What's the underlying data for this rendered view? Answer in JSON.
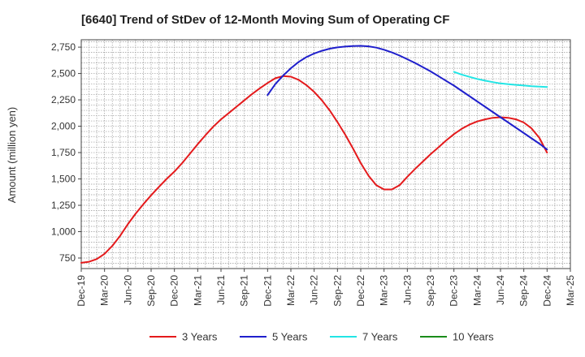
{
  "chart_data": {
    "type": "line",
    "title": "[6640]  Trend of StDev of 12-Month Moving Sum of Operating CF",
    "ylabel": "Amount (million yen)",
    "xlabel": "",
    "ylim": [
      650,
      2820
    ],
    "yticks": [
      750,
      1000,
      1250,
      1500,
      1750,
      2000,
      2250,
      2500,
      2750
    ],
    "ytick_labels": [
      "750",
      "1,000",
      "1,250",
      "1,500",
      "1,750",
      "2,000",
      "2,250",
      "2,500",
      "2,750"
    ],
    "xticks": [
      "2019-12",
      "2020-03",
      "2020-06",
      "2020-09",
      "2020-12",
      "2021-03",
      "2021-06",
      "2021-09",
      "2021-12",
      "2022-03",
      "2022-06",
      "2022-09",
      "2022-12",
      "2023-03",
      "2023-06",
      "2023-09",
      "2023-12",
      "2024-03",
      "2024-06",
      "2024-09",
      "2024-12",
      "2025-03"
    ],
    "xtick_labels": [
      "Dec-19",
      "Mar-20",
      "Jun-20",
      "Sep-20",
      "Dec-20",
      "Mar-21",
      "Jun-21",
      "Sep-21",
      "Dec-21",
      "Mar-22",
      "Jun-22",
      "Sep-22",
      "Dec-22",
      "Mar-23",
      "Jun-23",
      "Sep-23",
      "Dec-23",
      "Mar-24",
      "Jun-24",
      "Sep-24",
      "Dec-24",
      "Mar-25"
    ],
    "grid": true,
    "legend_position": "bottom",
    "series": [
      {
        "name": "3 Years",
        "color": "#e41a1c",
        "x": [
          "2019-12",
          "2020-01",
          "2020-02",
          "2020-03",
          "2020-04",
          "2020-05",
          "2020-06",
          "2020-07",
          "2020-08",
          "2020-09",
          "2020-10",
          "2020-11",
          "2020-12",
          "2021-01",
          "2021-02",
          "2021-03",
          "2021-04",
          "2021-05",
          "2021-06",
          "2021-07",
          "2021-08",
          "2021-09",
          "2021-10",
          "2021-11",
          "2021-12",
          "2022-01",
          "2022-02",
          "2022-03",
          "2022-04",
          "2022-05",
          "2022-06",
          "2022-07",
          "2022-08",
          "2022-09",
          "2022-10",
          "2022-11",
          "2022-12",
          "2023-01",
          "2023-02",
          "2023-03",
          "2023-04",
          "2023-05",
          "2023-06",
          "2023-07",
          "2023-08",
          "2023-09",
          "2023-10",
          "2023-11",
          "2023-12",
          "2024-01",
          "2024-02",
          "2024-03",
          "2024-04",
          "2024-05",
          "2024-06",
          "2024-07",
          "2024-08",
          "2024-09",
          "2024-10",
          "2024-11",
          "2024-12"
        ],
        "values": [
          705,
          715,
          740,
          790,
          865,
          960,
          1070,
          1170,
          1260,
          1345,
          1425,
          1500,
          1570,
          1650,
          1740,
          1830,
          1915,
          1995,
          2065,
          2125,
          2185,
          2245,
          2305,
          2360,
          2410,
          2455,
          2475,
          2470,
          2440,
          2390,
          2325,
          2245,
          2150,
          2040,
          1920,
          1790,
          1650,
          1530,
          1440,
          1400,
          1400,
          1440,
          1520,
          1595,
          1665,
          1735,
          1800,
          1865,
          1925,
          1975,
          2015,
          2045,
          2065,
          2080,
          2085,
          2080,
          2065,
          2035,
          1980,
          1890,
          1750
        ]
      },
      {
        "name": "5 Years",
        "color": "#1f1fcc",
        "x": [
          "2021-12",
          "2022-01",
          "2022-02",
          "2022-03",
          "2022-04",
          "2022-05",
          "2022-06",
          "2022-07",
          "2022-08",
          "2022-09",
          "2022-10",
          "2022-11",
          "2022-12",
          "2023-01",
          "2023-02",
          "2023-03",
          "2023-04",
          "2023-05",
          "2023-06",
          "2023-07",
          "2023-08",
          "2023-09",
          "2023-10",
          "2023-11",
          "2023-12",
          "2024-01",
          "2024-02",
          "2024-03",
          "2024-04",
          "2024-05",
          "2024-06",
          "2024-07",
          "2024-08",
          "2024-09",
          "2024-10",
          "2024-11",
          "2024-12"
        ],
        "values": [
          2295,
          2400,
          2480,
          2550,
          2610,
          2655,
          2690,
          2715,
          2735,
          2748,
          2755,
          2760,
          2762,
          2758,
          2745,
          2725,
          2700,
          2670,
          2635,
          2600,
          2560,
          2520,
          2475,
          2430,
          2385,
          2335,
          2285,
          2235,
          2185,
          2135,
          2085,
          2035,
          1985,
          1935,
          1885,
          1835,
          1780
        ]
      },
      {
        "name": "7 Years",
        "color": "#22e5e5",
        "x": [
          "2023-12",
          "2024-01",
          "2024-02",
          "2024-03",
          "2024-04",
          "2024-05",
          "2024-06",
          "2024-07",
          "2024-08",
          "2024-09",
          "2024-10",
          "2024-11",
          "2024-12"
        ],
        "values": [
          2515,
          2490,
          2468,
          2448,
          2432,
          2418,
          2406,
          2398,
          2392,
          2386,
          2380,
          2376,
          2372
        ]
      },
      {
        "name": "10 Years",
        "color": "#1a8c1a",
        "x": [],
        "values": []
      }
    ]
  }
}
